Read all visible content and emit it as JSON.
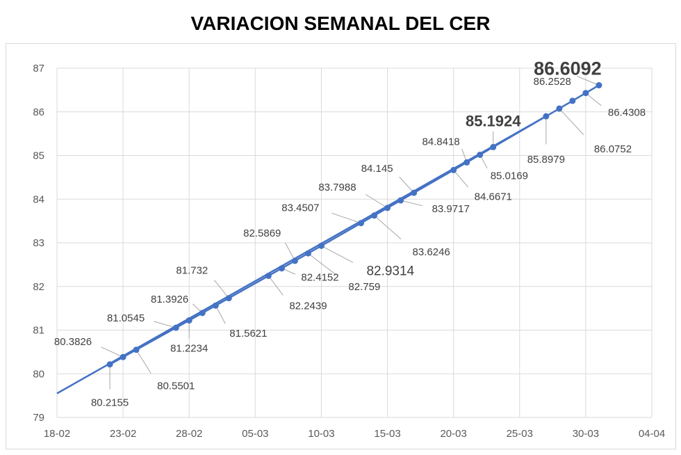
{
  "title": "VARIACION SEMANAL DEL CER",
  "chart_data": {
    "type": "line",
    "title": "VARIACION SEMANAL DEL CER",
    "xlabel": "",
    "ylabel": "",
    "ylim": [
      79,
      87
    ],
    "yticks": [
      "79",
      "80",
      "81",
      "82",
      "83",
      "84",
      "85",
      "86",
      "87"
    ],
    "xticks": [
      "18-02",
      "23-02",
      "28-02",
      "05-03",
      "10-03",
      "15-03",
      "20-03",
      "25-03",
      "30-03",
      "04-04"
    ],
    "x": [
      "22-02",
      "23-02",
      "24-02",
      "27-02",
      "28-02",
      "01-03",
      "02-03",
      "03-03",
      "06-03",
      "07-03",
      "08-03",
      "09-03",
      "10-03",
      "13-03",
      "14-03",
      "15-03",
      "16-03",
      "17-03",
      "20-03",
      "21-03",
      "22-03",
      "23-03",
      "27-03",
      "28-03",
      "29-03",
      "30-03",
      "31-03"
    ],
    "series": [
      {
        "values": [
          80.2155,
          80.3826,
          80.5501,
          81.0545,
          81.2234,
          81.3926,
          81.5621,
          81.732,
          82.2439,
          82.4152,
          82.5869,
          82.759,
          82.9314,
          83.4507,
          83.6246,
          83.7988,
          83.9717,
          84.145,
          84.6671,
          84.8418,
          85.0169,
          85.1924,
          85.8979,
          86.0752,
          86.2528,
          86.4308,
          86.6092
        ],
        "color": "#4472c4"
      }
    ],
    "trend_line": {
      "from": [
        "18-02",
        79.55
      ],
      "to": [
        "27-03",
        85.9
      ]
    },
    "data_labels": [
      "80.2155",
      "80.3826",
      "80.5501",
      "81.0545",
      "81.2234",
      "81.3926",
      "81.5621",
      "81.732",
      "82.2439",
      "82.4152",
      "82.5869",
      "82.759",
      "82.9314",
      "83.4507",
      "83.6246",
      "83.7988",
      "83.9717",
      "84.145",
      "84.6671",
      "84.8418",
      "85.0169",
      "85.1924",
      "85.8979",
      "86.0752",
      "86.2528",
      "86.4308",
      "86.6092"
    ],
    "grid": true
  }
}
